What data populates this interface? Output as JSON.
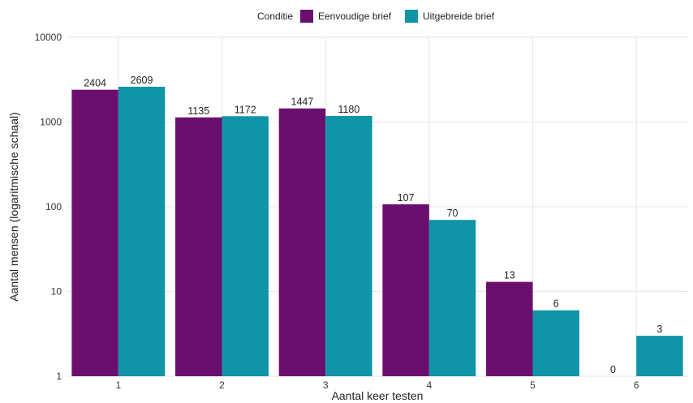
{
  "chart_data": {
    "type": "bar",
    "scale": "log",
    "categories": [
      "1",
      "2",
      "3",
      "4",
      "5",
      "6"
    ],
    "series": [
      {
        "name": "Eenvoudige brief",
        "color": "#6b0f6e",
        "values": [
          2404,
          1135,
          1447,
          107,
          13,
          0
        ]
      },
      {
        "name": "Uitgebreide brief",
        "color": "#0f94a8",
        "values": [
          2609,
          1172,
          1180,
          70,
          6,
          3
        ]
      }
    ],
    "xlabel": "Aantal keer testen",
    "ylabel": "Aantal mensen (logaritmische schaal)",
    "ylim": [
      1,
      10000
    ],
    "yticks": [
      "1",
      "10",
      "100",
      "1000",
      "10000"
    ],
    "grid": true,
    "legend": {
      "title": "Conditie",
      "position": "top"
    }
  }
}
